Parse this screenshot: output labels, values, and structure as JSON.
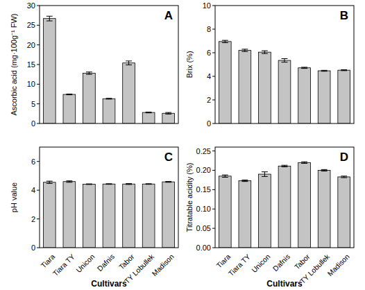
{
  "chart_data": [
    {
      "type": "bar",
      "title": "A",
      "y_label": "Ascorbic acid (mg·100g⁻¹ FW)",
      "categories": [
        "Tiara",
        "Tiara TY",
        "Unicon",
        "Dafnis",
        "Tabor",
        "TY Lobullek",
        "Madison"
      ],
      "values": [
        26.7,
        7.4,
        12.8,
        6.3,
        15.4,
        2.8,
        2.6
      ],
      "errors": [
        0.6,
        0.1,
        0.3,
        0.1,
        0.5,
        0.1,
        0.2
      ],
      "color": "#c4c4c4",
      "ylim": [
        0,
        30
      ],
      "yticks": [
        0,
        5,
        10,
        15,
        20,
        25,
        30
      ],
      "tick_labels": "y"
    },
    {
      "type": "bar",
      "title": "B",
      "y_label": "Brix (%)",
      "categories": [
        "Tiara",
        "Tiara TY",
        "Unicon",
        "Dafnis",
        "Tabor",
        "TY Lobullek",
        "Madison"
      ],
      "values": [
        6.95,
        6.2,
        6.05,
        5.35,
        4.72,
        4.47,
        4.52
      ],
      "errors": [
        0.1,
        0.1,
        0.12,
        0.15,
        0.05,
        0.04,
        0.04
      ],
      "color": "#c4c4c4",
      "ylim": [
        0,
        10
      ],
      "yticks": [
        0,
        2,
        4,
        6,
        8,
        10
      ],
      "tick_labels": "y"
    },
    {
      "type": "bar",
      "title": "C",
      "y_label": "pH value",
      "x_label": "Cultivars",
      "categories": [
        "Tiara",
        "Tiara TY",
        "Unicon",
        "Dafnis",
        "Tabor",
        "TY Lobullek",
        "Madison"
      ],
      "values": [
        4.55,
        4.6,
        4.42,
        4.43,
        4.43,
        4.43,
        4.58
      ],
      "errors": [
        0.08,
        0.05,
        0.02,
        0.02,
        0.03,
        0.02,
        0.03
      ],
      "color": "#c4c4c4",
      "ylim": [
        0,
        7
      ],
      "yticks": [
        0,
        2,
        4,
        6
      ]
    },
    {
      "type": "bar",
      "title": "D",
      "y_label": "Titratable acidity (%)",
      "x_label": "Cultivars",
      "categories": [
        "Tiara",
        "Tiara TY",
        "Unicon",
        "Dafnis",
        "Tabor",
        "TY Lobullek",
        "Madison"
      ],
      "values": [
        0.185,
        0.173,
        0.19,
        0.211,
        0.22,
        0.2,
        0.183
      ],
      "errors": [
        0.003,
        0.002,
        0.006,
        0.002,
        0.002,
        0.002,
        0.002
      ],
      "color": "#c4c4c4",
      "ylim": [
        0,
        0.26
      ],
      "yticks": [
        {
          "value": 0,
          "label": "0.00"
        },
        {
          "value": 0.05,
          "label": "0.05"
        },
        {
          "value": 0.1,
          "label": "0.10"
        },
        {
          "value": 0.15,
          "label": "0.15"
        },
        {
          "value": 0.2,
          "label": "0.20"
        },
        {
          "value": 0.25,
          "label": "0.25"
        }
      ]
    }
  ]
}
